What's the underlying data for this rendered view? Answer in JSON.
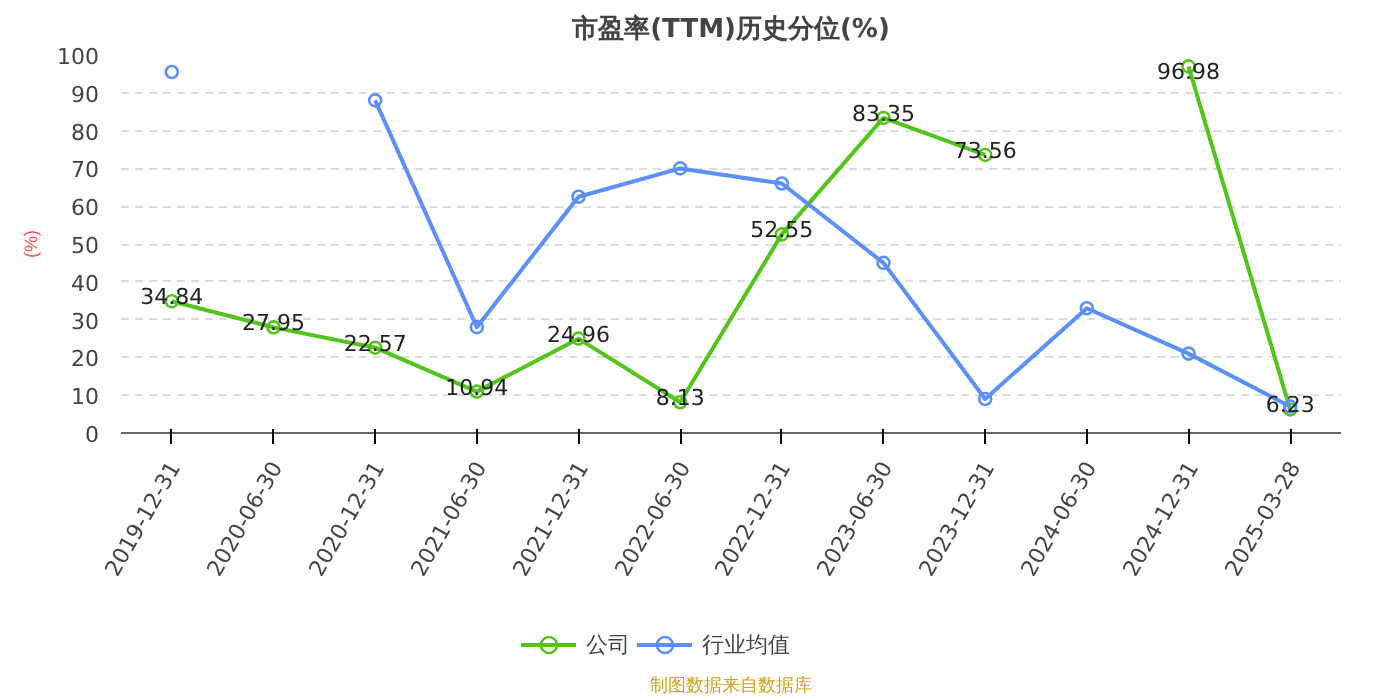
{
  "chart_data": {
    "type": "line",
    "title": "市盈率(TTM)历史分位(%)",
    "ylabel": "(%)",
    "categories": [
      "2019-12-31",
      "2020-06-30",
      "2020-12-31",
      "2021-06-30",
      "2021-12-31",
      "2022-06-30",
      "2022-12-31",
      "2023-06-30",
      "2023-12-31",
      "2024-06-30",
      "2024-12-31",
      "2025-03-28"
    ],
    "series": [
      {
        "name": "公司",
        "color": "#52c41a",
        "values": [
          34.84,
          27.95,
          22.57,
          10.94,
          24.96,
          8.13,
          52.55,
          83.35,
          73.56,
          null,
          96.98,
          6.23
        ],
        "value_labels": [
          "34.84",
          "27.95",
          "22.57",
          "10.94",
          "24.96",
          "8.13",
          "52.55",
          "83.35",
          "73.56",
          null,
          "96.98",
          "6.23"
        ]
      },
      {
        "name": "行业均值",
        "color": "#5b8ff9",
        "values": [
          95.5,
          null,
          88,
          28,
          62.5,
          70,
          66,
          45,
          9,
          33,
          21,
          7
        ]
      }
    ],
    "ylim": [
      0,
      100
    ],
    "yticks": [
      0,
      10,
      20,
      30,
      40,
      50,
      60,
      70,
      80,
      90,
      100
    ],
    "grid": "y",
    "legend": "bottom",
    "marker": "circle",
    "line_style": "solid",
    "annotations": [
      "制图数据来自数据库"
    ]
  }
}
